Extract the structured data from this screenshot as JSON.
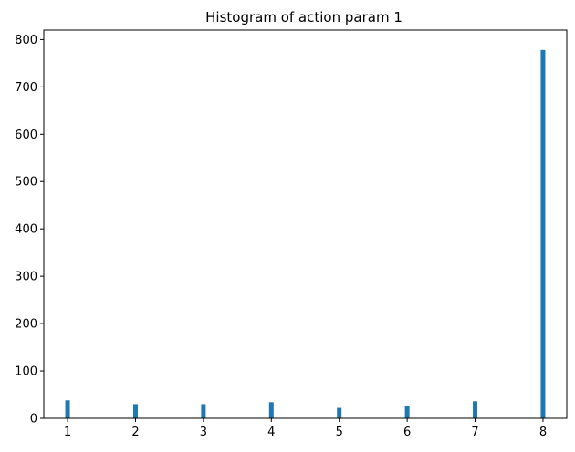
{
  "chart_data": {
    "type": "bar",
    "title": "Histogram of action param 1",
    "xlabel": "",
    "ylabel": "",
    "x": [
      1,
      2,
      3,
      4,
      5,
      6,
      7,
      8
    ],
    "values": [
      38,
      30,
      30,
      34,
      22,
      27,
      36,
      778
    ],
    "xlim": [
      0.65,
      8.35
    ],
    "ylim": [
      0,
      820
    ],
    "x_ticks": [
      "1",
      "2",
      "3",
      "4",
      "5",
      "6",
      "7",
      "8"
    ],
    "y_ticks": [
      "0",
      "100",
      "200",
      "300",
      "400",
      "500",
      "600",
      "700",
      "800"
    ],
    "bar_color": "#1f77b4",
    "grid": false,
    "legend": "none"
  }
}
